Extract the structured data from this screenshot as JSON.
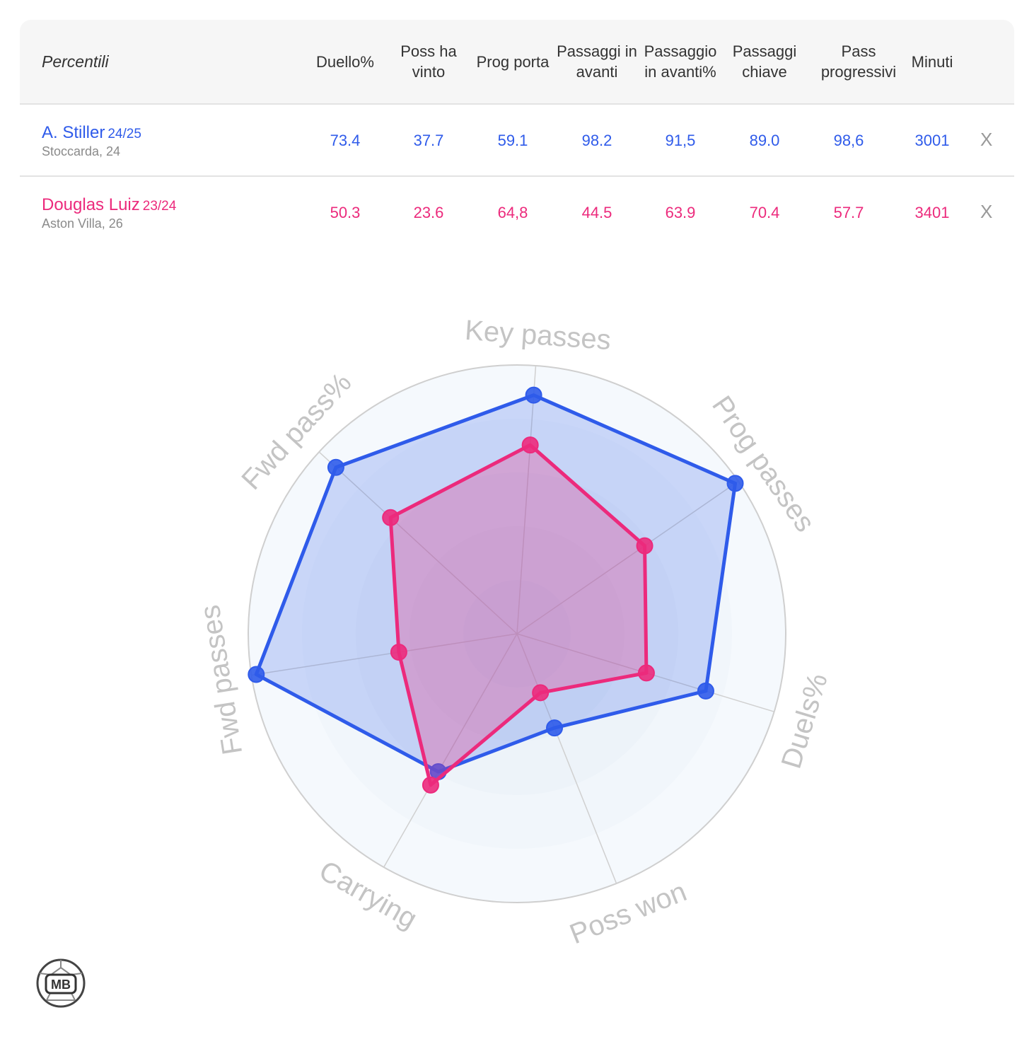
{
  "table": {
    "label": "Percentili",
    "columns": [
      {
        "label": "Duello%"
      },
      {
        "label": "Poss ha vinto"
      },
      {
        "label": "Prog porta"
      },
      {
        "label": "Passaggi in avanti"
      },
      {
        "label": "Passaggio in avanti%"
      },
      {
        "label": "Passaggi chiave"
      },
      {
        "label": "Pass progressivi"
      },
      {
        "label": "Minuti"
      }
    ],
    "close_label": "X",
    "players": [
      {
        "name": "A. Stiller",
        "season": "24/25",
        "club": "Stoccarda, 24",
        "values": [
          "73.4",
          "37.7",
          "59.1",
          "98.2",
          "91,5",
          "89.0",
          "98,6",
          "3001"
        ]
      },
      {
        "name": "Douglas Luiz",
        "season": "23/24",
        "club": "Aston Villa, 26",
        "values": [
          "50.3",
          "23.6",
          "64,8",
          "44.5",
          "63.9",
          "70.4",
          "57.7",
          "3401"
        ]
      }
    ]
  },
  "chart_data": {
    "type": "radar",
    "axes": [
      "Key passes",
      "Prog passes",
      "Duels%",
      "Poss won",
      "Carrying",
      "Fwd passes",
      "Fwd pass%"
    ],
    "range": [
      0,
      100
    ],
    "series": [
      {
        "name": "A. Stiller",
        "color": "#2f5bea",
        "values": [
          89.0,
          98.6,
          73.4,
          37.7,
          59.1,
          98.2,
          91.5
        ]
      },
      {
        "name": "Douglas Luiz",
        "color": "#ec2a7c",
        "values": [
          70.4,
          57.7,
          50.3,
          23.6,
          64.8,
          44.5,
          63.9
        ]
      }
    ]
  },
  "logo_text": "MB"
}
